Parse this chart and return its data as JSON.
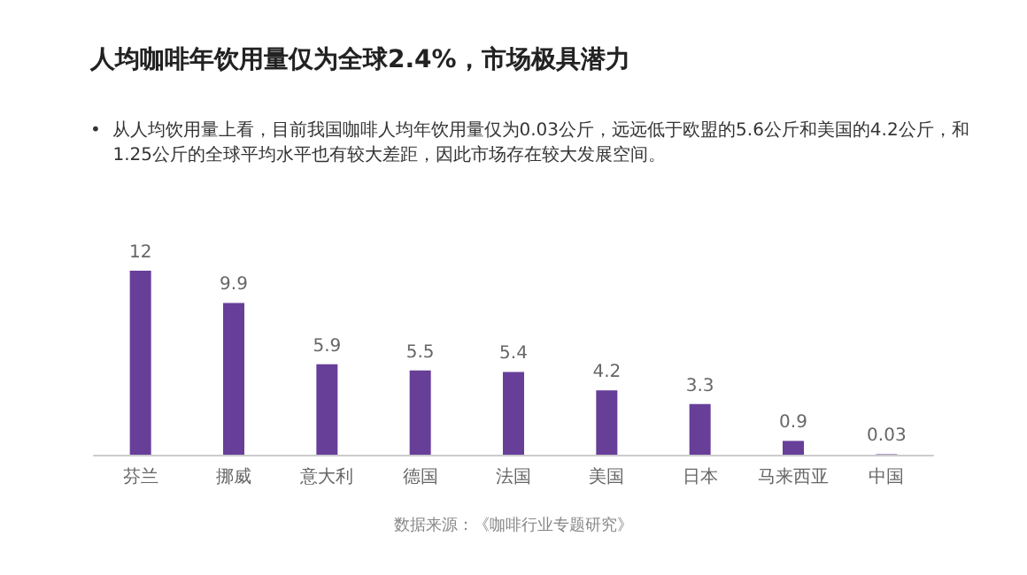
{
  "chart_data": {
    "type": "bar",
    "title": "人均咖啡年饮用量仅为全球2.4%，市场极具潜力",
    "subtitle": "•  从人均饮用量上看，目前我国咖啡人均年饮用量仅为0.03公斤，远远低于欧盟的5.6公斤和美国的4.2公斤，和\n    1.25公斤的全球平均水平也有较大差距，因此市场存在较大发展空间。",
    "categories": [
      "芬兰",
      "挪威",
      "意大利",
      "德国",
      "法国",
      "美国",
      "日本",
      "马来西亚",
      "中国"
    ],
    "values": [
      12,
      9.9,
      5.9,
      5.5,
      5.4,
      4.2,
      3.3,
      0.9,
      0.03
    ],
    "color": "#673f99",
    "data_labels": true,
    "annotations": [
      "数据来源：《咖啡行业专题研究》"
    ]
  }
}
